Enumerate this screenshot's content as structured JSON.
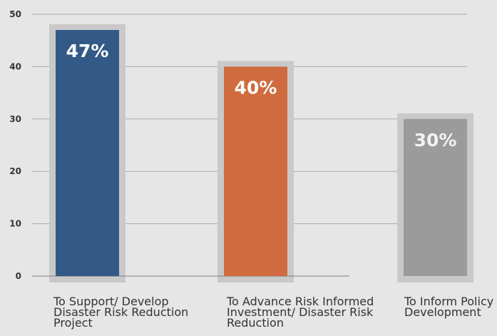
{
  "chart_data": {
    "type": "bar",
    "categories": [
      "To Support/ Develop Disaster Risk Reduction Project",
      "To Advance Risk Informed Investment/ Disaster Risk Reduction",
      "To Inform Policy Development"
    ],
    "values": [
      47,
      40,
      30
    ],
    "data_labels": [
      "47%",
      "40%",
      "30%"
    ],
    "yticks": [
      "0",
      "10",
      "20",
      "30",
      "40",
      "50"
    ],
    "ylim": [
      0,
      50
    ],
    "grid": true,
    "legend": "none",
    "colors": [
      "#335a86",
      "#cf6b3e",
      "#9a9b9a"
    ],
    "label_colors": [
      "#ffffff",
      "#ffffff",
      "#f2f2f2"
    ]
  }
}
